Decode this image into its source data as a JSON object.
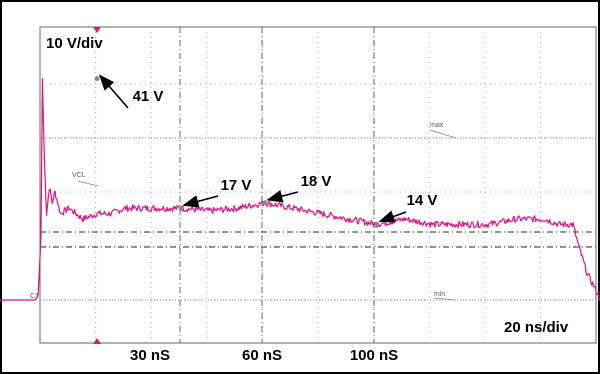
{
  "chart_data": {
    "type": "line",
    "title": "",
    "xlabel": "",
    "ylabel": "",
    "scale_labels": {
      "vertical": "10 V/div",
      "horizontal": "20 ns/div"
    },
    "x_tick_labels": [
      "30 nS",
      "60 nS",
      "100 nS"
    ],
    "marker_labels": {
      "vcl": "VCL",
      "max": "max",
      "min": "min",
      "ch": "C1"
    },
    "annotations": [
      {
        "text": "41 V",
        "time_ns": 0,
        "value_v": 41
      },
      {
        "text": "17 V",
        "time_ns": 30,
        "value_v": 17
      },
      {
        "text": "18 V",
        "time_ns": 60,
        "value_v": 18
      },
      {
        "text": "14 V",
        "time_ns": 100,
        "value_v": 14
      }
    ],
    "grid": true,
    "series": [
      {
        "color": "#e0117f",
        "time_ns": [
          -35,
          -22,
          -21,
          -20,
          -19.5,
          -19,
          -18.5,
          -18,
          -17,
          -16,
          -15,
          -13,
          -10,
          -5,
          0,
          5,
          10,
          20,
          30,
          40,
          50,
          60,
          70,
          80,
          90,
          100,
          110,
          120,
          130,
          140,
          150,
          160,
          165,
          170,
          172,
          175,
          180,
          190
        ],
        "voltage_v": [
          0,
          0,
          1,
          12,
          41,
          30,
          22,
          16,
          21,
          18,
          20,
          16,
          17,
          15,
          16,
          16,
          17,
          17,
          17,
          16.5,
          17,
          18,
          17,
          16,
          15,
          14,
          15,
          14,
          14,
          14,
          15,
          15,
          14,
          14,
          10,
          5,
          0,
          0
        ]
      }
    ]
  }
}
